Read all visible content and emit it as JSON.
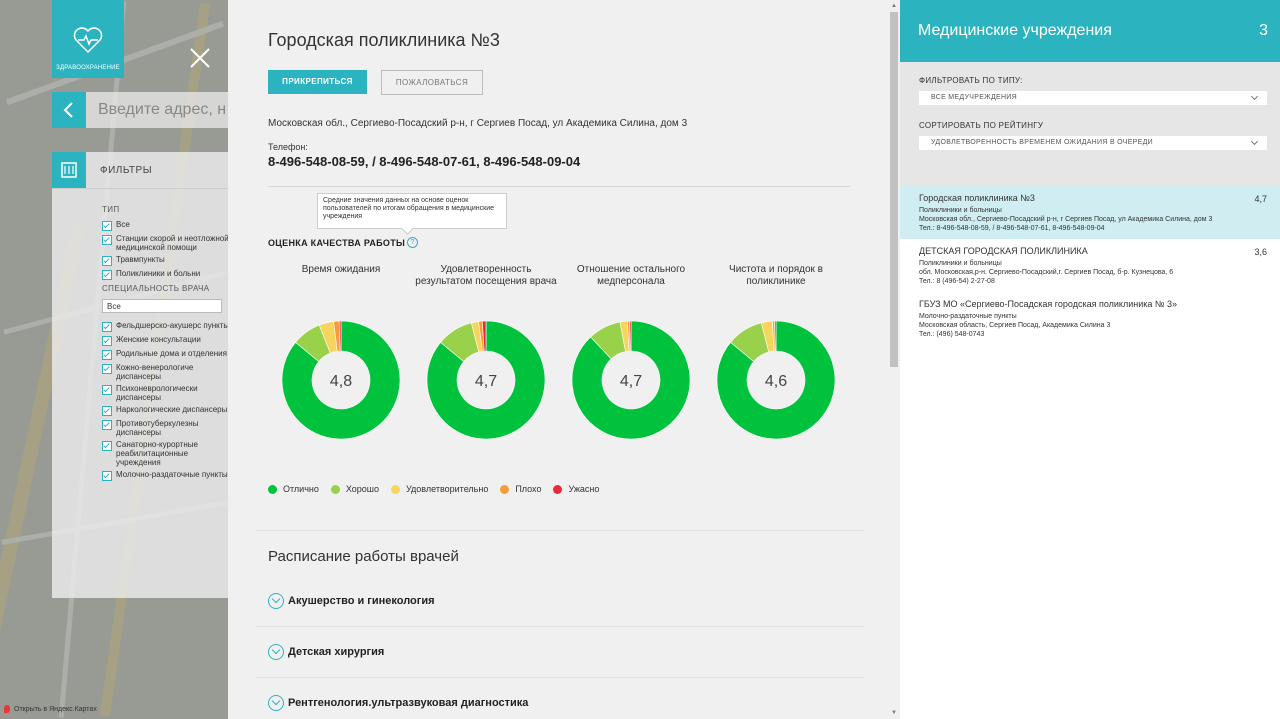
{
  "map": {
    "brand_text": "ЗДРАВООХРАНЕНИЕ",
    "address_placeholder": "Введите адрес, н",
    "filters_label": "ФИЛЬТРЫ",
    "type_label": "ТИП",
    "type_items": [
      "Все",
      "Станции скорой и неотложной медицинской помощи",
      "Травмпункты",
      "Поликлиники и больни"
    ],
    "specialty_label": "СПЕЦИАЛЬНОСТЬ ВРАЧА",
    "specialty_select": "Все",
    "specialty_items": [
      "Фельдшерско-акушерс пункты",
      "Женские консультации",
      "Родильные дома и отделения",
      "Кожно-венерологиче диспансеры",
      "Психоневрологически диспансеры",
      "Наркологические диспансеры",
      "Противотуберкулезны диспансеры",
      "Санаторно-курортные реабилитационные учреждения",
      "Молочно-раздаточные пункты"
    ],
    "footer_text": "Открыть в Яндекс.Картах"
  },
  "detail": {
    "title": "Городская поликлиника №3",
    "attach_button": "ПРИКРЕПИТЬСЯ",
    "complain_button": "ПОЖАЛОВАТЬСЯ",
    "address": "Московская обл., Сергиево-Посадский р-н, г Сергиев Посад, ул Академика Силина, дом 3",
    "phone_label": "Телефон:",
    "phones": "8-496-548-08-59, / 8-496-548-07-61, 8-496-548-09-04",
    "tooltip": "Средние значения данных на основе оценок пользователей по итогам обращения в медицинские учреждения",
    "quality_title": "ОЦЕНКА КАЧЕСТВА РАБОТЫ",
    "quality_icon": "?",
    "legend": [
      "Отлично",
      "Хорошо",
      "Удовлетворительно",
      "Плохо",
      "Ужасно"
    ],
    "schedule_title": "Расписание работы врачей",
    "schedule_items": [
      "Акушерство и гинекология",
      "Детская хирургия",
      "Рентгенология.ультразвуковая диагностика"
    ]
  },
  "colors": {
    "accent": "#2bb3c0",
    "excellent": "#00c23c",
    "good": "#99d14b",
    "satisfactory": "#f6d55e",
    "bad": "#f79c3a",
    "terrible": "#e8293b"
  },
  "chart_data": {
    "type": "pie",
    "charts": [
      {
        "title": "Время ожидания",
        "center_label": "4,8",
        "values": [
          86,
          8,
          4,
          1.5,
          0.5
        ]
      },
      {
        "title": "Удовлетворенность результатом посещения врача",
        "center_label": "4,7",
        "values": [
          86,
          10,
          2,
          1,
          1
        ]
      },
      {
        "title": "Отношение остального медперсонала",
        "center_label": "4,7",
        "values": [
          88,
          9,
          2,
          0.6,
          0.4
        ]
      },
      {
        "title": "Чистота и порядок в поликлинике",
        "center_label": "4,6",
        "values": [
          86,
          10,
          3,
          0.6,
          0.4
        ]
      }
    ]
  },
  "right": {
    "title": "Медицинские учреждения",
    "count": "3",
    "filter_type_label": "ФИЛЬТРОВАТЬ ПО ТИПУ:",
    "filter_type_value": "ВСЕ МЕДУЧРЕЖДЕНИЯ",
    "sort_label": "СОРТИРОВАТЬ ПО РЕЙТИНГУ",
    "sort_value": "УДОВЛЕТВОРЕННОСТЬ ВРЕМЕНЕМ ОЖИДАНИЯ В ОЧЕРЕДИ",
    "items": [
      {
        "name": "Городская поликлиника №3",
        "rating": "4,7",
        "type": "Поликлиники и больницы",
        "address": "Московская обл., Сергиево-Посадский р-н, г Сергиев Посад, ул Академика Силина, дом 3",
        "phone": "Тел.: 8-496-548-08-59, / 8-496-548-07-61, 8-496-548-09-04"
      },
      {
        "name": "ДЕТСКАЯ ГОРОДСКАЯ ПОЛИКЛИНИКА",
        "rating": "3,6",
        "type": "Поликлиники и больницы",
        "address": "обл. Московская,р-н. Сергиево-Посадский,г. Сергиев Посад, б-р. Кузнецова, 6",
        "phone": "Тел.: 8 (496-54) 2-27-08"
      },
      {
        "name": "ГБУЗ МО «Сергиево-Посадская городская поликлиника № 3»",
        "rating": "",
        "type": "Молочно-раздаточные пункты",
        "address": "Московская область, Сергиев Посад, Академика Силина 3",
        "phone": "Тел.: (496) 548-0743"
      }
    ]
  }
}
